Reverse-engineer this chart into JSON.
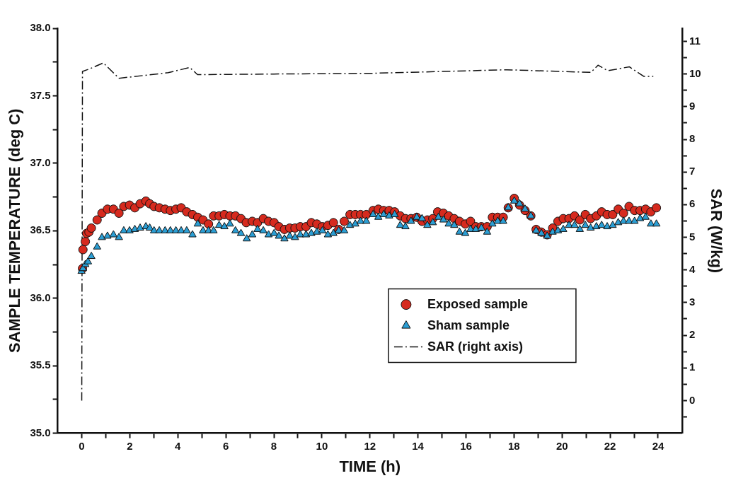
{
  "chart_data": {
    "type": "scatter",
    "xlabel": "TIME (h)",
    "ylabel": "SAMPLE TEMPERATURE (deg C)",
    "y2label": "SAR (W/kg)",
    "xlim": [
      -1,
      25
    ],
    "xticks": [
      0,
      {
        "value": 1,
        "label": null
      },
      2,
      {
        "value": 3,
        "label": null
      },
      4,
      {
        "value": 5,
        "label": null
      },
      6,
      {
        "value": 7,
        "label": null
      },
      8,
      {
        "value": 9,
        "label": null
      },
      10,
      {
        "value": 11,
        "label": null
      },
      12,
      {
        "value": 13,
        "label": null
      },
      14,
      {
        "value": 15,
        "label": null
      },
      16,
      {
        "value": 17,
        "label": null
      },
      18,
      {
        "value": 19,
        "label": null
      },
      20,
      {
        "value": 21,
        "label": null
      },
      22,
      {
        "value": 23,
        "label": null
      },
      24
    ],
    "ylim": [
      35,
      38
    ],
    "yticks": [
      {
        "value": 35,
        "label": "35.0"
      },
      {
        "value": 35.25,
        "label": null
      },
      {
        "value": 35.5,
        "label": "35.5"
      },
      {
        "value": 35.75,
        "label": null
      },
      {
        "value": 36,
        "label": "36.0"
      },
      {
        "value": 36.25,
        "label": null
      },
      {
        "value": 36.5,
        "label": "36.5"
      },
      {
        "value": 36.75,
        "label": null
      },
      {
        "value": 37,
        "label": "37.0"
      },
      {
        "value": 37.25,
        "label": null
      },
      {
        "value": 37.5,
        "label": "37.5"
      },
      {
        "value": 37.75,
        "label": null
      },
      {
        "value": 38,
        "label": "38.0"
      }
    ],
    "y2lim": [
      -1,
      11.4
    ],
    "y2ticks": [
      {
        "value": -0.5,
        "label": null
      },
      0,
      {
        "value": 0.5,
        "label": null
      },
      1,
      {
        "value": 1.5,
        "label": null
      },
      2,
      {
        "value": 2.5,
        "label": null
      },
      3,
      {
        "value": 3.5,
        "label": null
      },
      4,
      {
        "value": 4.5,
        "label": null
      },
      5,
      {
        "value": 5.5,
        "label": null
      },
      6,
      {
        "value": 6.5,
        "label": null
      },
      7,
      {
        "value": 7.5,
        "label": null
      },
      8,
      {
        "value": 8.5,
        "label": null
      },
      9,
      {
        "value": 9.5,
        "label": null
      },
      10,
      {
        "value": 10.5,
        "label": null
      },
      11
    ],
    "grid": false,
    "legend": "bottom right",
    "series": [
      {
        "name": "Exposed sample",
        "marker": "circle",
        "color": "#d62a1e",
        "x": [
          0.03,
          0.05,
          0.15,
          0.2,
          0.3,
          0.4,
          0.64,
          0.84,
          1.07,
          1.32,
          1.55,
          1.75,
          1.99,
          2.21,
          2.43,
          2.67,
          2.83,
          3.01,
          3.23,
          3.47,
          3.69,
          3.92,
          4.14,
          4.37,
          4.61,
          4.83,
          5.05,
          5.28,
          5.49,
          5.72,
          5.94,
          6.17,
          6.4,
          6.63,
          6.85,
          7.1,
          7.32,
          7.56,
          7.78,
          8.01,
          8.21,
          8.44,
          8.66,
          8.88,
          9.1,
          9.34,
          9.56,
          9.79,
          10.02,
          10.25,
          10.48,
          10.7,
          10.93,
          11.17,
          11.39,
          11.61,
          11.85,
          12.13,
          12.35,
          12.57,
          12.8,
          13.03,
          13.26,
          13.48,
          13.71,
          13.95,
          14.17,
          14.39,
          14.62,
          14.82,
          15.06,
          15.28,
          15.51,
          15.73,
          15.97,
          16.19,
          16.41,
          16.64,
          16.88,
          17.1,
          17.32,
          17.55,
          17.76,
          18.01,
          18.23,
          18.46,
          18.7,
          18.92,
          19.14,
          19.38,
          19.61,
          19.83,
          20.05,
          20.29,
          20.52,
          20.74,
          20.97,
          21.19,
          21.43,
          21.65,
          21.88,
          22.11,
          22.34,
          22.56,
          22.79,
          23.02,
          23.25,
          23.48,
          23.7,
          23.93
        ],
        "values": [
          36.22,
          36.36,
          36.42,
          36.48,
          36.49,
          36.52,
          36.58,
          36.63,
          36.66,
          36.66,
          36.63,
          36.68,
          36.69,
          36.67,
          36.7,
          36.72,
          36.7,
          36.68,
          36.67,
          36.66,
          36.65,
          36.66,
          36.67,
          36.64,
          36.62,
          36.6,
          36.58,
          36.55,
          36.61,
          36.61,
          36.62,
          36.61,
          36.61,
          36.59,
          36.56,
          36.57,
          36.56,
          36.59,
          36.57,
          36.56,
          36.53,
          36.51,
          36.52,
          36.52,
          36.53,
          36.53,
          36.56,
          36.55,
          36.53,
          36.54,
          36.56,
          36.51,
          36.57,
          36.62,
          36.62,
          36.62,
          36.62,
          36.65,
          36.66,
          36.65,
          36.65,
          36.64,
          36.61,
          36.59,
          36.59,
          36.6,
          36.57,
          36.58,
          36.59,
          36.64,
          36.63,
          36.61,
          36.59,
          36.57,
          36.55,
          36.57,
          36.53,
          36.53,
          36.53,
          36.6,
          36.6,
          36.6,
          36.67,
          36.74,
          36.69,
          36.65,
          36.61,
          36.51,
          36.49,
          36.47,
          36.52,
          36.57,
          36.59,
          36.59,
          36.61,
          36.58,
          36.62,
          36.59,
          36.61,
          36.64,
          36.62,
          36.62,
          36.66,
          36.63,
          36.68,
          36.65,
          36.65,
          36.66,
          36.64,
          36.67
        ]
      },
      {
        "name": "Sham sample",
        "marker": "triangle",
        "color": "#2b9ed4",
        "x": [
          -0.01,
          0.05,
          0.15,
          0.26,
          0.4,
          0.64,
          0.84,
          1.07,
          1.32,
          1.55,
          1.75,
          1.99,
          2.21,
          2.43,
          2.67,
          2.83,
          3.01,
          3.23,
          3.47,
          3.69,
          3.92,
          4.14,
          4.37,
          4.61,
          4.83,
          5.05,
          5.28,
          5.49,
          5.72,
          5.94,
          6.17,
          6.4,
          6.63,
          6.87,
          7.1,
          7.32,
          7.56,
          7.78,
          8.01,
          8.21,
          8.44,
          8.66,
          8.88,
          9.1,
          9.34,
          9.56,
          9.79,
          10.02,
          10.25,
          10.48,
          10.7,
          10.93,
          11.17,
          11.39,
          11.61,
          11.85,
          12.13,
          12.35,
          12.57,
          12.8,
          13.03,
          13.26,
          13.48,
          13.71,
          13.95,
          14.17,
          14.39,
          14.62,
          14.85,
          15.06,
          15.28,
          15.51,
          15.73,
          15.97,
          16.19,
          16.41,
          16.64,
          16.88,
          17.1,
          17.32,
          17.55,
          17.76,
          18.01,
          18.23,
          18.46,
          18.7,
          18.92,
          19.14,
          19.38,
          19.61,
          19.83,
          20.05,
          20.29,
          20.52,
          20.74,
          20.97,
          21.19,
          21.43,
          21.65,
          21.88,
          22.11,
          22.34,
          22.56,
          22.79,
          23.02,
          23.25,
          23.48,
          23.7,
          23.93
        ],
        "values": [
          36.2,
          36.22,
          36.25,
          36.27,
          36.31,
          36.38,
          36.45,
          36.46,
          36.47,
          36.45,
          36.5,
          36.5,
          36.51,
          36.52,
          36.53,
          36.52,
          36.5,
          36.5,
          36.5,
          36.5,
          36.5,
          36.5,
          36.5,
          36.47,
          36.55,
          36.5,
          36.5,
          36.5,
          36.54,
          36.53,
          36.55,
          36.5,
          36.48,
          36.44,
          36.47,
          36.51,
          36.5,
          36.47,
          36.48,
          36.46,
          36.44,
          36.46,
          36.45,
          36.47,
          36.47,
          36.48,
          36.49,
          36.5,
          36.47,
          36.48,
          36.5,
          36.5,
          36.54,
          36.55,
          36.57,
          36.57,
          36.62,
          36.6,
          36.62,
          36.61,
          36.62,
          36.54,
          36.53,
          36.57,
          36.6,
          36.59,
          36.54,
          36.56,
          36.6,
          36.58,
          36.55,
          36.54,
          36.49,
          36.48,
          36.51,
          36.51,
          36.52,
          36.49,
          36.55,
          36.57,
          36.57,
          36.67,
          36.72,
          36.7,
          36.66,
          36.61,
          36.5,
          36.48,
          36.46,
          36.49,
          36.5,
          36.51,
          36.54,
          36.54,
          36.51,
          36.54,
          36.52,
          36.53,
          36.54,
          36.53,
          36.54,
          36.56,
          36.57,
          36.57,
          36.57,
          36.59,
          36.6,
          36.55,
          36.55
        ]
      },
      {
        "name": "SAR (right axis)",
        "type": "line",
        "axis": "y2",
        "marker": "none",
        "line_style": "dashed",
        "color": "#111111",
        "x": [
          0,
          0.03,
          0.3,
          0.9,
          1.55,
          3.6,
          4.5,
          4.82,
          8,
          12,
          17.7,
          21.2,
          21.5,
          21.9,
          22.8,
          23.4,
          23.8
        ],
        "values": [
          0,
          10.08,
          10.15,
          10.34,
          9.87,
          10.04,
          10.2,
          9.98,
          10.0,
          10.02,
          10.13,
          10.05,
          10.27,
          10.1,
          10.22,
          9.93,
          9.93
        ]
      }
    ]
  }
}
